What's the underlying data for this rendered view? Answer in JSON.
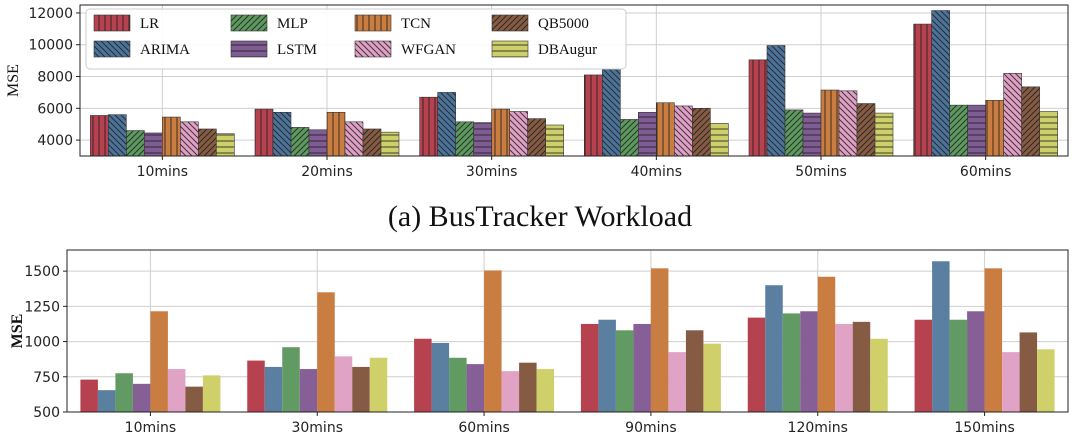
{
  "chart_data": [
    {
      "type": "bar",
      "ylabel": "MSE",
      "ylim": [
        3000,
        12500
      ],
      "yticks": [
        4000,
        6000,
        8000,
        10000,
        12000
      ],
      "grid": true,
      "hatched": true,
      "legend_placement": "top-left",
      "categories": [
        "10mins",
        "20mins",
        "30mins",
        "40mins",
        "50mins",
        "60mins"
      ],
      "series": [
        {
          "name": "LR",
          "color": "#b5424e",
          "values": [
            5550,
            5950,
            6700,
            8100,
            9050,
            11300
          ]
        },
        {
          "name": "ARIMA",
          "color": "#4d7399",
          "values": [
            5600,
            5750,
            7000,
            8450,
            9950,
            12150
          ]
        },
        {
          "name": "MLP",
          "color": "#5e9960",
          "values": [
            4600,
            4800,
            5150,
            5300,
            5900,
            6200
          ]
        },
        {
          "name": "LSTM",
          "color": "#805c94",
          "values": [
            4450,
            4650,
            5100,
            5750,
            5700,
            6200
          ]
        },
        {
          "name": "TCN",
          "color": "#c97d40",
          "values": [
            5450,
            5750,
            5950,
            6350,
            7150,
            6500
          ]
        },
        {
          "name": "WFGAN",
          "color": "#dfa0c4",
          "values": [
            5150,
            5150,
            5800,
            6150,
            7100,
            8200
          ]
        },
        {
          "name": "QB5000",
          "color": "#865b44",
          "values": [
            4700,
            4700,
            5350,
            6000,
            6300,
            7350
          ]
        },
        {
          "name": "DBAugur",
          "color": "#cdcf6a",
          "values": [
            4400,
            4500,
            4950,
            5050,
            5700,
            5800
          ]
        }
      ]
    },
    {
      "type": "bar",
      "ylabel": "MSE",
      "ylim": [
        500,
        1650
      ],
      "yticks": [
        500,
        750,
        1000,
        1250,
        1500
      ],
      "grid": true,
      "hatched": false,
      "categories": [
        "10mins",
        "30mins",
        "60mins",
        "90mins",
        "120mins",
        "150mins"
      ],
      "series": [
        {
          "color": "#b5424e",
          "values": [
            730,
            865,
            1020,
            1125,
            1170,
            1155
          ]
        },
        {
          "color": "#5a7fa0",
          "values": [
            655,
            820,
            990,
            1155,
            1400,
            1570
          ]
        },
        {
          "color": "#629a63",
          "values": [
            775,
            960,
            885,
            1080,
            1200,
            1155
          ]
        },
        {
          "color": "#865f96",
          "values": [
            700,
            805,
            840,
            1125,
            1215,
            1215
          ]
        },
        {
          "color": "#c97d40",
          "values": [
            1215,
            1350,
            1505,
            1520,
            1460,
            1520
          ]
        },
        {
          "color": "#e0a3c6",
          "values": [
            805,
            895,
            790,
            925,
            1125,
            925
          ]
        },
        {
          "color": "#865b44",
          "values": [
            680,
            820,
            850,
            1080,
            1140,
            1065
          ]
        },
        {
          "color": "#d0d06a",
          "values": [
            760,
            885,
            805,
            985,
            1020,
            945
          ]
        }
      ]
    }
  ],
  "caption_a": "(a)  BusTracker Workload"
}
